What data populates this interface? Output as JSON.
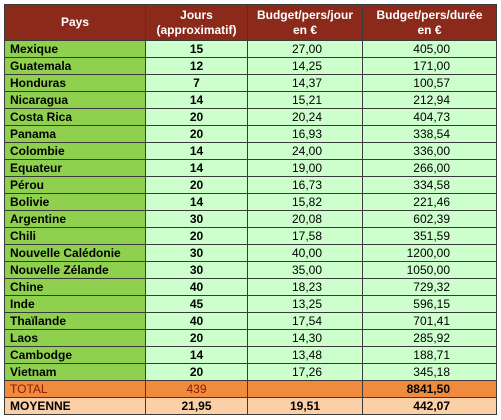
{
  "headers": [
    "Pays",
    "Jours\n(approximatif)",
    "Budget/pers/jour\nen €",
    "Budget/pers/durée\nen €"
  ],
  "rows": [
    {
      "pays": "Mexique",
      "jours": "15",
      "jour": "27,00",
      "duree": "405,00"
    },
    {
      "pays": "Guatemala",
      "jours": "12",
      "jour": "14,25",
      "duree": "171,00"
    },
    {
      "pays": "Honduras",
      "jours": "7",
      "jour": "14,37",
      "duree": "100,57"
    },
    {
      "pays": "Nicaragua",
      "jours": "14",
      "jour": "15,21",
      "duree": "212,94"
    },
    {
      "pays": "Costa Rica",
      "jours": "20",
      "jour": "20,24",
      "duree": "404,73"
    },
    {
      "pays": "Panama",
      "jours": "20",
      "jour": "16,93",
      "duree": "338,54"
    },
    {
      "pays": "Colombie",
      "jours": "14",
      "jour": "24,00",
      "duree": "336,00"
    },
    {
      "pays": "Equateur",
      "jours": "14",
      "jour": "19,00",
      "duree": "266,00"
    },
    {
      "pays": "Pérou",
      "jours": "20",
      "jour": "16,73",
      "duree": "334,58"
    },
    {
      "pays": "Bolivie",
      "jours": "14",
      "jour": "15,82",
      "duree": "221,46"
    },
    {
      "pays": "Argentine",
      "jours": "30",
      "jour": "20,08",
      "duree": "602,39"
    },
    {
      "pays": "Chili",
      "jours": "20",
      "jour": "17,58",
      "duree": "351,59"
    },
    {
      "pays": "Nouvelle Calédonie",
      "jours": "30",
      "jour": "40,00",
      "duree": "1200,00"
    },
    {
      "pays": "Nouvelle Zélande",
      "jours": "30",
      "jour": "35,00",
      "duree": "1050,00"
    },
    {
      "pays": "Chine",
      "jours": "40",
      "jour": "18,23",
      "duree": "729,32"
    },
    {
      "pays": "Inde",
      "jours": "45",
      "jour": "13,25",
      "duree": "596,15"
    },
    {
      "pays": "Thaïlande",
      "jours": "40",
      "jour": "17,54",
      "duree": "701,41"
    },
    {
      "pays": "Laos",
      "jours": "20",
      "jour": "14,30",
      "duree": "285,92"
    },
    {
      "pays": "Cambodge",
      "jours": "14",
      "jour": "13,48",
      "duree": "188,71"
    },
    {
      "pays": "Vietnam",
      "jours": "20",
      "jour": "17,26",
      "duree": "345,18"
    }
  ],
  "total": {
    "label": "TOTAL",
    "jours": "439",
    "jour": "",
    "duree": "8841,50"
  },
  "moyenne": {
    "label": "MOYENNE",
    "jours": "21,95",
    "jour": "19,51",
    "duree": "442,07"
  },
  "colors": {
    "header": "#8b2a1b",
    "country": "#8fd14f",
    "cell": "#ccffcc",
    "total": "#f08a3c",
    "average": "#fbd0a6"
  }
}
